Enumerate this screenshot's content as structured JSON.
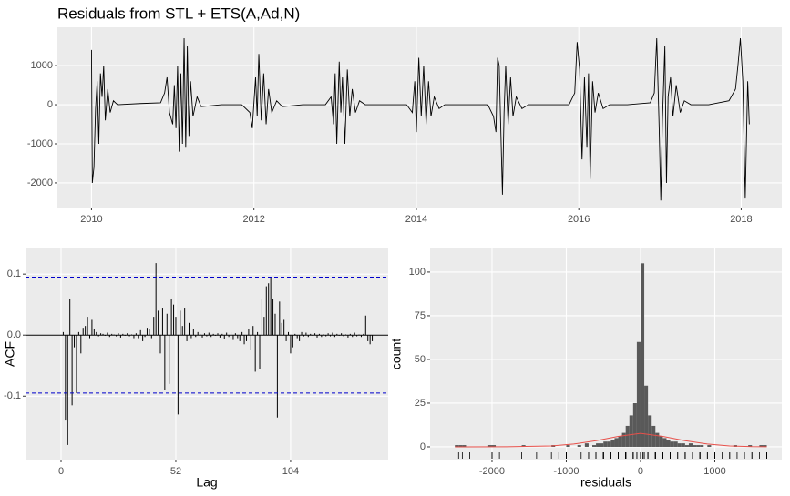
{
  "chart_data": [
    {
      "type": "line",
      "title": "Residuals from STL +  ETS(A,Ad,N)",
      "color": "#000000",
      "grid": true,
      "xlim": [
        2009.58,
        2018.5
      ],
      "xticks": [
        2010,
        2012,
        2014,
        2016,
        2018
      ],
      "ylim": [
        -2630,
        1980
      ],
      "yticks": [
        -2000,
        -1000,
        0,
        1000
      ],
      "x": [
        2010.0,
        2010.01,
        2010.03,
        2010.05,
        2010.07,
        2010.09,
        2010.11,
        2010.13,
        2010.15,
        2010.17,
        2010.2,
        2010.23,
        2010.27,
        2010.32,
        2010.6,
        2010.85,
        2010.9,
        2010.93,
        2010.96,
        2011.0,
        2011.02,
        2011.04,
        2011.06,
        2011.08,
        2011.1,
        2011.12,
        2011.14,
        2011.16,
        2011.18,
        2011.2,
        2011.22,
        2011.25,
        2011.3,
        2011.35,
        2011.6,
        2011.85,
        2011.95,
        2011.98,
        2012.02,
        2012.04,
        2012.06,
        2012.09,
        2012.12,
        2012.15,
        2012.18,
        2012.22,
        2012.28,
        2012.35,
        2012.6,
        2012.88,
        2012.95,
        2012.98,
        2013.0,
        2013.02,
        2013.05,
        2013.07,
        2013.09,
        2013.12,
        2013.15,
        2013.18,
        2013.21,
        2013.25,
        2013.3,
        2013.37,
        2013.6,
        2013.88,
        2013.95,
        2013.98,
        2014.0,
        2014.03,
        2014.06,
        2014.09,
        2014.12,
        2014.15,
        2014.18,
        2014.22,
        2014.28,
        2014.35,
        2014.6,
        2014.88,
        2014.95,
        2014.98,
        2015.0,
        2015.02,
        2015.06,
        2015.08,
        2015.1,
        2015.13,
        2015.16,
        2015.19,
        2015.23,
        2015.3,
        2015.38,
        2015.6,
        2015.88,
        2015.95,
        2015.98,
        2016.01,
        2016.04,
        2016.07,
        2016.1,
        2016.12,
        2016.14,
        2016.17,
        2016.2,
        2016.24,
        2016.3,
        2016.38,
        2016.6,
        2016.88,
        2016.93,
        2016.96,
        2016.99,
        2017.01,
        2017.03,
        2017.06,
        2017.08,
        2017.1,
        2017.13,
        2017.16,
        2017.2,
        2017.25,
        2017.3,
        2017.38,
        2017.6,
        2017.85,
        2017.93,
        2017.96,
        2017.99,
        2018.02,
        2018.05,
        2018.08,
        2018.1
      ],
      "values": [
        1400,
        -2000,
        -1600,
        -100,
        600,
        -1000,
        800,
        200,
        1000,
        -400,
        400,
        -200,
        100,
        0,
        30,
        50,
        300,
        700,
        -200,
        -500,
        500,
        -600,
        1000,
        -1200,
        800,
        -1000,
        1700,
        -1100,
        1500,
        -800,
        600,
        -300,
        200,
        -50,
        0,
        0,
        -200,
        -600,
        700,
        -300,
        1300,
        -400,
        800,
        -500,
        400,
        -200,
        100,
        -50,
        0,
        0,
        200,
        -500,
        800,
        -1000,
        1100,
        -200,
        700,
        -1000,
        900,
        -300,
        400,
        -200,
        100,
        0,
        0,
        0,
        -200,
        600,
        -700,
        1200,
        -300,
        1000,
        -500,
        600,
        -300,
        200,
        -100,
        0,
        0,
        0,
        -300,
        -700,
        1200,
        1000,
        -2300,
        -200,
        1000,
        -500,
        700,
        -300,
        200,
        -100,
        0,
        0,
        0,
        300,
        1600,
        900,
        -1400,
        700,
        -1100,
        800,
        -1900,
        600,
        -200,
        300,
        -100,
        0,
        0,
        50,
        300,
        1700,
        -600,
        -2450,
        -400,
        1500,
        -2000,
        200,
        700,
        -300,
        500,
        -200,
        100,
        0,
        0,
        100,
        400,
        1000,
        1700,
        600,
        -2400,
        600,
        -500
      ]
    },
    {
      "type": "acf",
      "xlabel": "Lag",
      "ylabel": "ACF",
      "color": "#000000",
      "grid": true,
      "ci": [
        0.095,
        -0.095
      ],
      "ci_color": "#0000CC",
      "xlim": [
        -16.1,
        148.2
      ],
      "xticks": [
        0,
        52,
        104
      ],
      "ylim": [
        -0.204,
        0.142
      ],
      "yticks": [
        -0.1,
        {
          "value": 0,
          "label": "0.0"
        },
        0.1
      ],
      "x": [
        1,
        2,
        3,
        4,
        5,
        6,
        7,
        8,
        9,
        10,
        11,
        12,
        13,
        14,
        15,
        16,
        17,
        18,
        19,
        20,
        21,
        22,
        23,
        24,
        25,
        26,
        27,
        28,
        29,
        30,
        31,
        32,
        33,
        34,
        35,
        36,
        37,
        38,
        39,
        40,
        41,
        42,
        43,
        44,
        45,
        46,
        47,
        48,
        49,
        50,
        51,
        52,
        53,
        54,
        55,
        56,
        57,
        58,
        59,
        60,
        61,
        62,
        63,
        64,
        65,
        66,
        67,
        68,
        69,
        70,
        71,
        72,
        73,
        74,
        75,
        76,
        77,
        78,
        79,
        80,
        81,
        82,
        83,
        84,
        85,
        86,
        87,
        88,
        89,
        90,
        91,
        92,
        93,
        94,
        95,
        96,
        97,
        98,
        99,
        100,
        101,
        102,
        103,
        104,
        105,
        106,
        107,
        108,
        109,
        110,
        111,
        112,
        113,
        114,
        115,
        116,
        117,
        118,
        119,
        120,
        121,
        122,
        123,
        124,
        125,
        126,
        127,
        128,
        129,
        130,
        131,
        132,
        133,
        134,
        135,
        136,
        137,
        138,
        139,
        140,
        141
      ],
      "values": [
        0.005,
        -0.14,
        -0.18,
        0.06,
        -0.115,
        -0.02,
        -0.095,
        0.005,
        -0.03,
        0.012,
        0.015,
        0.03,
        -0.005,
        0.025,
        0.01,
        0.005,
        -0.002,
        0.003,
        0.002,
        -0.001,
        0.004,
        -0.003,
        0.002,
        0.001,
        -0.002,
        0.003,
        -0.004,
        0.002,
        -0.001,
        0.003,
        -0.002,
        0.001,
        -0.005,
        0.003,
        -0.005,
        0.008,
        -0.01,
        -0.003,
        0.012,
        0.01,
        -0.005,
        0.03,
        0.118,
        0.04,
        -0.03,
        0.045,
        -0.09,
        0.035,
        -0.08,
        0.06,
        0.05,
        0.03,
        -0.13,
        0.04,
        0.015,
        0.045,
        -0.01,
        0.02,
        -0.005,
        0.01,
        -0.003,
        0.005,
        0.002,
        -0.004,
        0.003,
        -0.002,
        0.004,
        -0.003,
        0.002,
        -0.001,
        0.003,
        -0.004,
        0.002,
        -0.006,
        0.004,
        -0.003,
        0.005,
        -0.008,
        0.003,
        -0.005,
        -0.01,
        0.005,
        -0.015,
        -0.01,
        0.01,
        -0.025,
        0.015,
        -0.06,
        0.005,
        -0.055,
        0.06,
        0.03,
        0.08,
        0.085,
        0.095,
        0.06,
        0.035,
        -0.135,
        0.055,
        0.02,
        0.025,
        -0.01,
        0.005,
        -0.03,
        -0.02,
        0.002,
        -0.005,
        -0.01,
        0.005,
        -0.002,
        0.004,
        -0.003,
        0.002,
        -0.001,
        0.003,
        -0.004,
        0.002,
        -0.003,
        0.001,
        -0.002,
        0.003,
        -0.002,
        0.004,
        -0.003,
        0.002,
        -0.001,
        0.003,
        -0.002,
        0.001,
        -0.004,
        0.002,
        -0.003,
        0.004,
        -0.002,
        0.001,
        -0.003,
        0.002,
        0.032,
        -0.01,
        -0.015,
        -0.01
      ]
    },
    {
      "type": "histogram",
      "xlabel": "residuals",
      "ylabel": "count",
      "color": "#595959",
      "grid": true,
      "xlim": [
        -2834,
        1902
      ],
      "xticks": [
        -2000,
        -1000,
        0,
        1000
      ],
      "ylim": [
        -7.3,
        113.5
      ],
      "yticks": [
        0,
        25,
        50,
        75,
        100
      ],
      "bins": [
        -2500,
        -2450,
        -2400,
        -2350,
        -2300,
        -2250,
        -2200,
        -2150,
        -2100,
        -2050,
        -2000,
        -1950,
        -1900,
        -1850,
        -1800,
        -1750,
        -1700,
        -1650,
        -1600,
        -1550,
        -1500,
        -1450,
        -1400,
        -1350,
        -1300,
        -1250,
        -1200,
        -1150,
        -1100,
        -1050,
        -1000,
        -950,
        -900,
        -850,
        -800,
        -750,
        -700,
        -650,
        -600,
        -550,
        -500,
        -450,
        -400,
        -350,
        -300,
        -250,
        -200,
        -150,
        -100,
        -50,
        0,
        50,
        100,
        150,
        200,
        250,
        300,
        350,
        400,
        450,
        500,
        550,
        600,
        650,
        700,
        750,
        800,
        850,
        900,
        950,
        1000,
        1050,
        1100,
        1150,
        1200,
        1250,
        1300,
        1350,
        1400,
        1450,
        1500,
        1550,
        1600,
        1650,
        1700
      ],
      "values": [
        1,
        1,
        1,
        0,
        0,
        0,
        0,
        0,
        0,
        1,
        1,
        0,
        0,
        0,
        0,
        0,
        0,
        0,
        1,
        0,
        0,
        0,
        0,
        0,
        0,
        0,
        1,
        0,
        0,
        0,
        1,
        0,
        0,
        1,
        0,
        2,
        0,
        1,
        2,
        2,
        3,
        3,
        4,
        5,
        6,
        8,
        12,
        18,
        25,
        60,
        105,
        35,
        18,
        12,
        8,
        6,
        5,
        4,
        3,
        3,
        2,
        2,
        1,
        2,
        1,
        1,
        1,
        0,
        1,
        0,
        0,
        0,
        0,
        0,
        0,
        1,
        0,
        0,
        0,
        1,
        0,
        0,
        1,
        1
      ],
      "density": {
        "color": "#E8504A",
        "x": [
          -2500,
          -1800,
          -1200,
          -900,
          -600,
          -300,
          0,
          300,
          600,
          900,
          1200,
          1500,
          1700
        ],
        "values": [
          0,
          0.05,
          0.5,
          1.6,
          3.5,
          6,
          7.7,
          6,
          3.5,
          1.6,
          0.5,
          0.1,
          0.05
        ]
      },
      "rug_color": "#000000"
    }
  ]
}
